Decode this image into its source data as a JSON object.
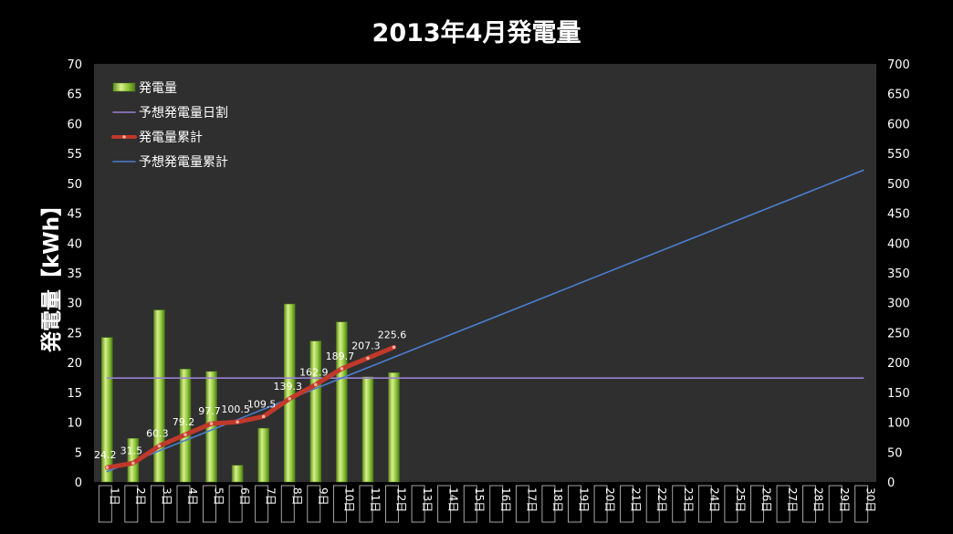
{
  "chart_data": {
    "type": "bar",
    "title": "2013年4月発電量",
    "ylabel": "発電量【kWh】",
    "categories": [
      "1日",
      "2日",
      "3日",
      "4日",
      "5日",
      "6日",
      "7日",
      "8日",
      "9日",
      "10日",
      "11日",
      "12日",
      "13日",
      "14日",
      "15日",
      "16日",
      "17日",
      "18日",
      "19日",
      "20日",
      "21日",
      "22日",
      "23日",
      "24日",
      "25日",
      "26日",
      "27日",
      "28日",
      "29日",
      "30日"
    ],
    "ylim": [
      0,
      70
    ],
    "y2lim": [
      0,
      700
    ],
    "yticks": [
      "0",
      "5",
      "10",
      "15",
      "20",
      "25",
      "30",
      "35",
      "40",
      "45",
      "50",
      "55",
      "60",
      "65",
      "70"
    ],
    "y2ticks": [
      "0",
      "50",
      "100",
      "150",
      "200",
      "250",
      "300",
      "350",
      "400",
      "450",
      "500",
      "550",
      "600",
      "650",
      "700"
    ],
    "grid": false,
    "legend_position": "top-left",
    "series": [
      {
        "name": "発電量",
        "type": "bar",
        "axis": "left",
        "values": [
          24.2,
          7.3,
          28.8,
          18.9,
          18.5,
          2.8,
          9.0,
          29.8,
          23.6,
          26.8,
          17.6,
          18.3,
          null,
          null,
          null,
          null,
          null,
          null,
          null,
          null,
          null,
          null,
          null,
          null,
          null,
          null,
          null,
          null,
          null,
          null
        ]
      },
      {
        "name": "予想発電量日割",
        "type": "line",
        "axis": "left",
        "values": [
          17.4,
          17.4,
          17.4,
          17.4,
          17.4,
          17.4,
          17.4,
          17.4,
          17.4,
          17.4,
          17.4,
          17.4,
          17.4,
          17.4,
          17.4,
          17.4,
          17.4,
          17.4,
          17.4,
          17.4,
          17.4,
          17.4,
          17.4,
          17.4,
          17.4,
          17.4,
          17.4,
          17.4,
          17.4,
          17.4
        ]
      },
      {
        "name": "発電量累計",
        "type": "line",
        "axis": "right",
        "values": [
          24.2,
          31.5,
          60.3,
          79.2,
          97.7,
          100.5,
          109.5,
          139.3,
          162.9,
          189.7,
          207.3,
          225.6,
          null,
          null,
          null,
          null,
          null,
          null,
          null,
          null,
          null,
          null,
          null,
          null,
          null,
          null,
          null,
          null,
          null,
          null
        ],
        "labels": [
          "24.2",
          "31.5",
          "60.3",
          "79.2",
          "97.7",
          "100.5",
          "109.5",
          "139.3",
          "162.9",
          "189.7",
          "207.3",
          "225.6"
        ]
      },
      {
        "name": "予想発電量累計",
        "type": "line",
        "axis": "right",
        "values": [
          17.4,
          34.8,
          52.2,
          69.6,
          87.0,
          104.4,
          121.8,
          139.2,
          156.6,
          174.0,
          191.4,
          208.8,
          226.2,
          243.6,
          261.0,
          278.4,
          295.8,
          313.2,
          330.6,
          348.0,
          365.4,
          382.8,
          400.2,
          417.6,
          435.0,
          452.4,
          469.8,
          487.2,
          504.6,
          522.0
        ]
      }
    ],
    "colors": {
      "background": "#000000",
      "plot_background": "#2f2f2f",
      "bar": "#8cc43a",
      "bar_highlight": "#d8f08a",
      "daily_forecast": "#9b7fd4",
      "cumulative": "#c0392b",
      "forecast_cumulative": "#4a7fd0",
      "text": "#ffffff"
    }
  }
}
